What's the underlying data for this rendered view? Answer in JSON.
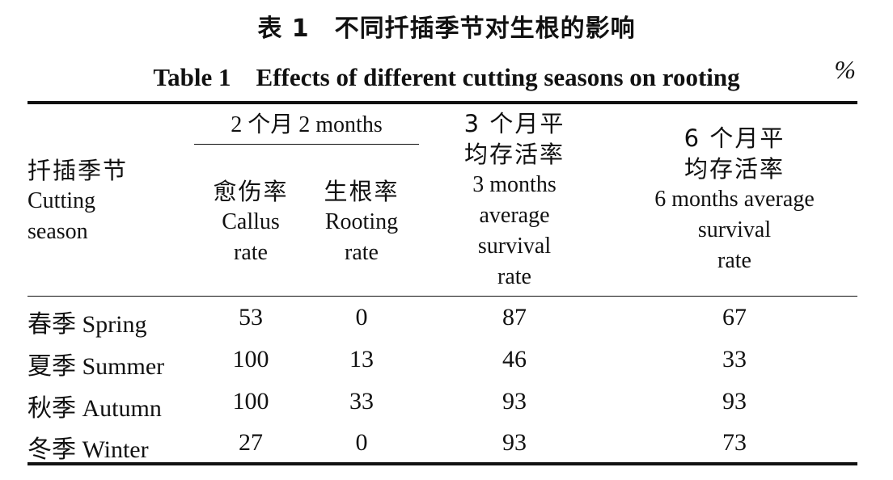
{
  "caption": {
    "title_cn": "表 1　不同扦插季节对生根的影响",
    "title_en": "Table 1　Effects of different cutting seasons on rooting",
    "unit": "%"
  },
  "header": {
    "season": {
      "cn": "扦插季节",
      "en_1": "Cutting",
      "en_2": "season"
    },
    "two_months": "2 个月 2 months",
    "callus": {
      "cn": "愈伤率",
      "en_1": "Callus",
      "en_2": "rate"
    },
    "rooting": {
      "cn": "生根率",
      "en_1": "Rooting",
      "en_2": "rate"
    },
    "three_months": {
      "cn_1": "3 个月平",
      "cn_2": "均存活率",
      "en_1": "3 months",
      "en_2": "average",
      "en_3": "survival",
      "en_4": "rate"
    },
    "six_months": {
      "cn_1": "6 个月平",
      "cn_2": "均存活率",
      "en_1": "6 months average",
      "en_2": "survival",
      "en_3": "rate"
    }
  },
  "rows": [
    {
      "season": "春季 Spring",
      "callus": "53",
      "rooting": "0",
      "m3": "87",
      "m6": "67"
    },
    {
      "season": "夏季 Summer",
      "callus": "100",
      "rooting": "13",
      "m3": "46",
      "m6": "33"
    },
    {
      "season": "秋季 Autumn",
      "callus": "100",
      "rooting": "33",
      "m3": "93",
      "m6": "93"
    },
    {
      "season": "冬季 Winter",
      "callus": "27",
      "rooting": "0",
      "m3": "93",
      "m6": "73"
    }
  ]
}
